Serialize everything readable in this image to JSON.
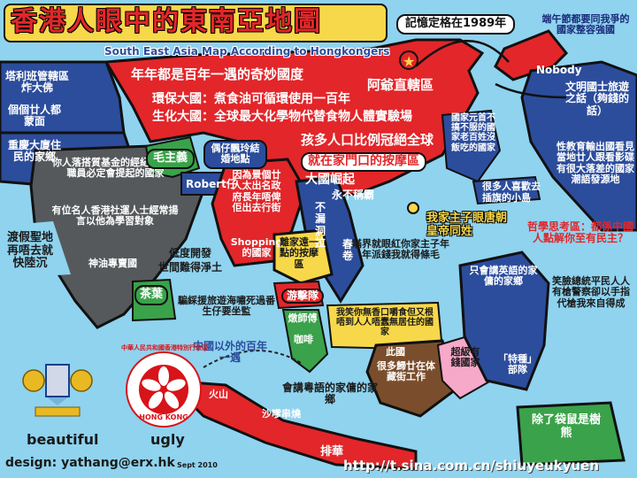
{
  "title": "香港人眼中的東南亞地圖",
  "subtitle": "South East Asia Map According to Hongkongers",
  "regions": {
    "china_line1": "年年都是百年一遇的奇妙國度",
    "china_line2": "環保大國：煮食油可循環使用一百年",
    "china_line3": "生化大國：全球最大化學物代替食物人體實驗場",
    "china_line4": "孩多人口比例冠絕全球",
    "china_line5": "就在家門口的按摩區",
    "china_line6": "大國崛起",
    "china_line7": "永不稱霸",
    "ah_gong": "阿爺直轄區",
    "beijing": "記憶定格在1989年",
    "korea": "端午節都要同我爭的國家整容強國",
    "nobody": "Nobody",
    "japan_1": "文明國士旅遊之話（夠錢的話）",
    "japan_2": "性教育輸出國看見當地廿人跟看影碟有很大落差的國家潮語發源地",
    "kazakh": "塔利班管轄區炸大佛",
    "afghan": "個個廿人都蒙面",
    "tibet": "重慶大廈住民的家鄉",
    "india_1": "你人落搭質基金的經紀和銀行職員必定會提起的國家",
    "india_2": "有位名人香港社運人士經常揚言以他為學習對象",
    "india_3": "神油專賣國",
    "mao": "毛主義",
    "nepal": "偶仔飄玲結婚地點",
    "robert": "Robert仔",
    "myanmar_1": "因為景個廿人太出名政府長年唔俾佢出去行街",
    "myanmar_2": "Shopping的國家",
    "shop_1": "低度開發",
    "shop_2": "世間難得淨土",
    "laos": "不漏洞拉",
    "vietnam": "春卷",
    "hk": "我家主子眼唐朝皇帝同姓",
    "taiwan_1": "很多人喜歡去",
    "taiwan_2": "插旗的小島",
    "philippines": "國家元首不搞不服的國家老百姓沒飯吃的國家",
    "cambodia": "離家遠一點的按摩區",
    "thailand": "游擊隊",
    "thai2": "瞞界就眼紅你家主子年年派錢我就得條毛",
    "tea": "茶葉",
    "coffee": "咖啡",
    "sri": "燉師傅",
    "bangkok": "騙綵援旅遊海嘯死過番生仔要坐監",
    "shelter": "渡假聖地再唔去就快陸沉",
    "malaysia": "我笑你無香口嚼食但又根唔到人人唔蠢無居住的國家",
    "century": "中國以外的百年一遇",
    "indonesia_1": "此國",
    "indonesia_2": "很多歸廿在体藏街工作",
    "big_prov": "超級有錢國家",
    "borneo_1": "會講粵語的家傭的家鄉",
    "java_1": "火山",
    "java_2": "沙嗲串燒",
    "java_3": "排華",
    "png_1": "只會講英語的家傭的家鄉",
    "png_2": "「特種」部隊",
    "philos": "哲學思考區：都係中國人點解你至有民主？",
    "joke": "笑臉總統平民人人有槍警察卻以手指代槍我來自得成",
    "kangaroo": "除了袋鼠是樹熊"
  },
  "emblems": {
    "beautiful": "beautiful",
    "ugly": "ugly",
    "hk_ring": "中華人民共和國香港特別行政區",
    "hk_en": "HONG KONG"
  },
  "footer": {
    "design": "design: yathang@erx.hk",
    "date": "Sept 2010",
    "watermark": "http://t.sina.com.cn/shiuyeukyuen"
  },
  "colors": {
    "sea": "#8fd3ef",
    "china": "#e2262a",
    "india": "#55595c",
    "land_blue": "#2c4d9c",
    "japan": "#2c4d9c",
    "yellow": "#f7d84a"
  }
}
